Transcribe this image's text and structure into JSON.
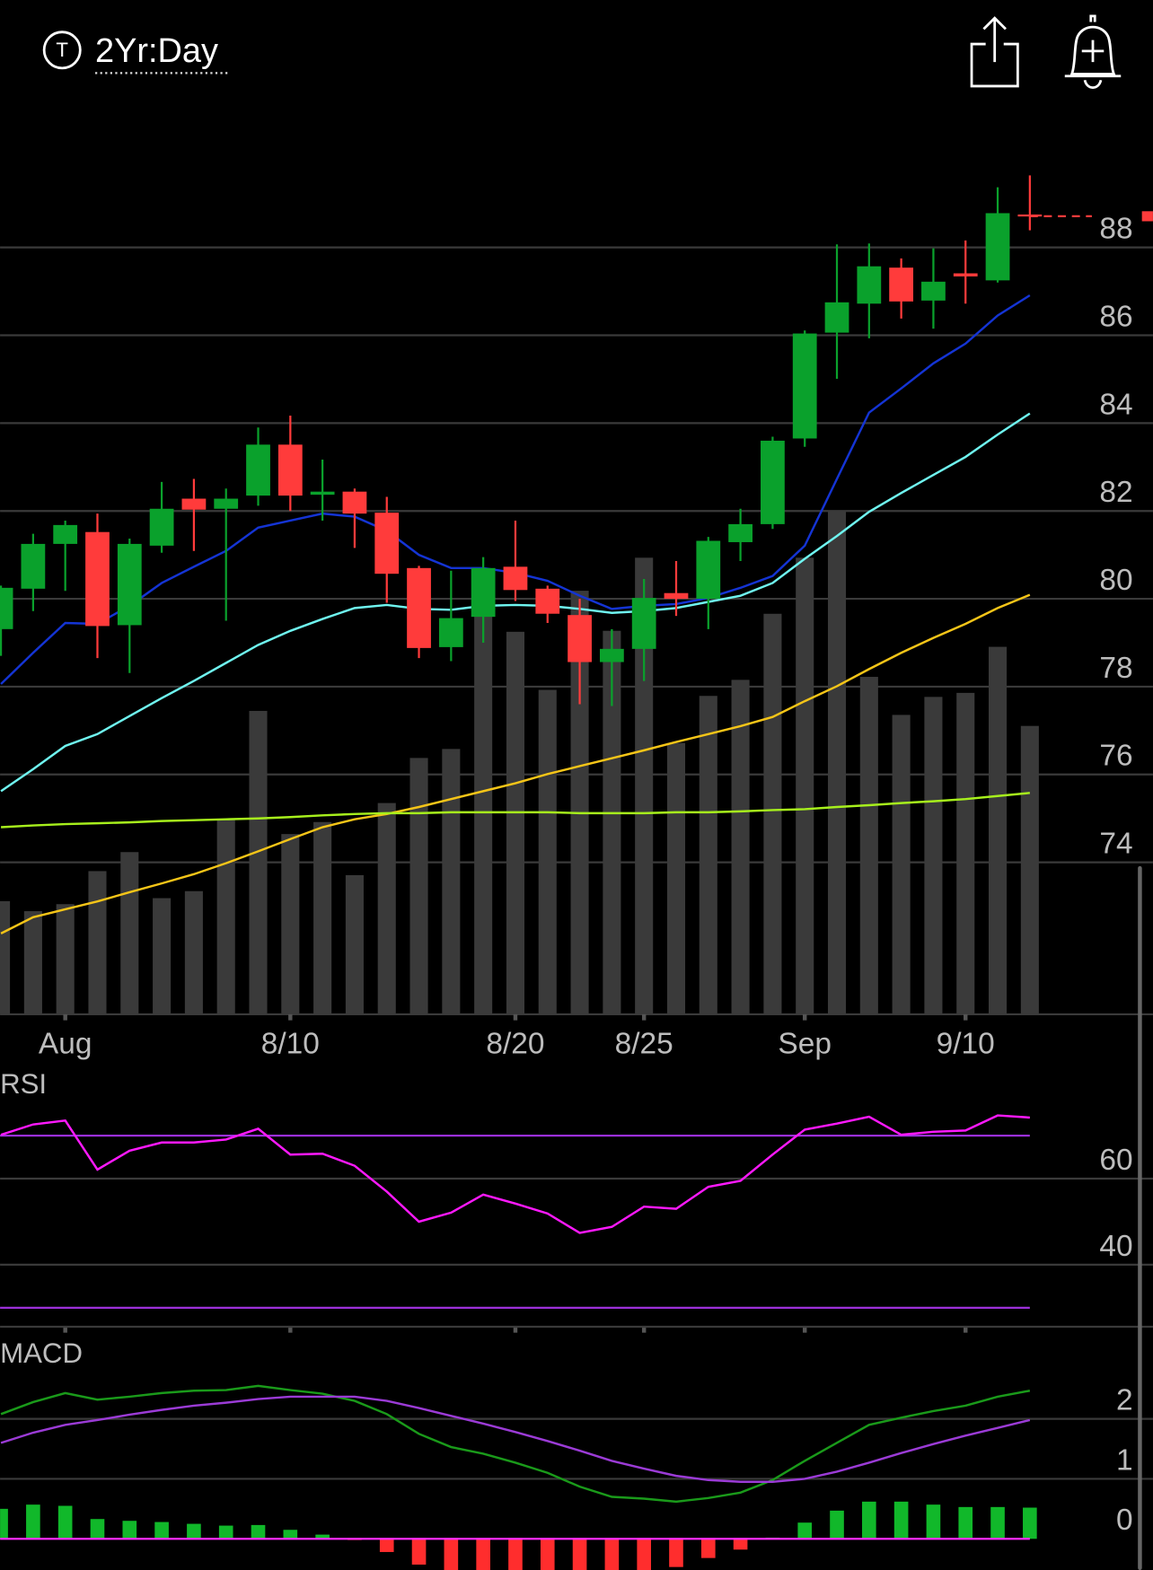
{
  "header": {
    "icon": "T",
    "timeframe": "2Yr:Day"
  },
  "chart_data": [
    {
      "type": "candlestick",
      "categories": [
        null,
        null,
        "Aug",
        null,
        null,
        null,
        null,
        null,
        null,
        "8/10",
        null,
        null,
        null,
        null,
        null,
        null,
        "8/20",
        null,
        null,
        null,
        "8/25",
        null,
        null,
        null,
        null,
        "Sep",
        null,
        null,
        null,
        null,
        "9/10",
        null,
        null
      ],
      "open": [
        79.31,
        80.23,
        81.25,
        81.52,
        79.4,
        81.21,
        82.28,
        82.05,
        82.35,
        83.51,
        82.37,
        82.44,
        81.96,
        80.7,
        78.9,
        79.59,
        80.73,
        80.23,
        79.63,
        78.56,
        78.86,
        80.13,
        80.0,
        81.29,
        81.7,
        83.65,
        86.06,
        86.72,
        87.54,
        86.79,
        87.41,
        87.25,
        88.75
      ],
      "high": [
        80.3,
        81.48,
        81.78,
        81.94,
        81.37,
        82.66,
        82.73,
        82.51,
        83.9,
        84.17,
        83.17,
        82.51,
        82.32,
        80.75,
        80.64,
        80.95,
        81.78,
        80.3,
        80.0,
        79.31,
        80.45,
        80.86,
        81.41,
        82.05,
        83.69,
        86.11,
        88.07,
        88.09,
        87.75,
        87.98,
        88.16,
        89.37,
        89.64
      ],
      "low": [
        78.7,
        79.72,
        80.18,
        78.65,
        78.31,
        81.05,
        81.09,
        79.5,
        82.12,
        82.0,
        81.78,
        81.16,
        79.91,
        78.65,
        78.58,
        79.0,
        79.95,
        79.45,
        77.6,
        77.56,
        78.13,
        79.61,
        79.31,
        80.86,
        81.59,
        83.46,
        85.01,
        85.93,
        86.38,
        86.15,
        86.72,
        87.2,
        88.39
      ],
      "close": [
        80.25,
        81.25,
        81.68,
        79.38,
        81.25,
        82.05,
        82.03,
        82.28,
        83.51,
        82.35,
        82.44,
        81.94,
        80.57,
        78.88,
        79.56,
        80.7,
        80.2,
        79.66,
        78.56,
        78.86,
        80.02,
        80.0,
        81.32,
        81.7,
        83.6,
        86.04,
        86.75,
        87.57,
        86.77,
        87.22,
        87.34,
        88.78,
        88.71
      ],
      "up_color": "#0aa12c",
      "down_color": "#ff3b3b",
      "ylim": [
        70.54,
        90.67
      ],
      "yticks": [
        74,
        76,
        78,
        80,
        82,
        84,
        86,
        88
      ],
      "grid": true,
      "overlays": [
        {
          "color": "#1434d4",
          "values": [
            78.06,
            78.77,
            79.45,
            79.43,
            79.84,
            80.36,
            80.73,
            81.09,
            81.62,
            81.78,
            81.94,
            81.87,
            81.55,
            81.0,
            80.7,
            80.7,
            80.59,
            80.41,
            80.07,
            79.77,
            79.84,
            79.88,
            80.02,
            80.25,
            80.52,
            81.21,
            82.73,
            84.24,
            84.79,
            85.36,
            85.81,
            86.45,
            86.91
          ]
        },
        {
          "color": "#6ff5f0",
          "values": [
            75.62,
            76.12,
            76.65,
            76.92,
            77.33,
            77.74,
            78.13,
            78.54,
            78.95,
            79.27,
            79.54,
            79.79,
            79.86,
            79.77,
            79.75,
            79.84,
            79.86,
            79.84,
            79.77,
            79.68,
            79.72,
            79.79,
            79.93,
            80.07,
            80.36,
            80.91,
            81.43,
            81.98,
            82.41,
            82.82,
            83.23,
            83.74,
            84.22
          ]
        },
        {
          "color": "#f5c518",
          "values": [
            72.38,
            72.75,
            72.93,
            73.11,
            73.32,
            73.52,
            73.73,
            73.98,
            74.25,
            74.53,
            74.8,
            74.98,
            75.1,
            75.26,
            75.44,
            75.62,
            75.8,
            76.01,
            76.19,
            76.37,
            76.55,
            76.74,
            76.92,
            77.1,
            77.31,
            77.67,
            78.01,
            78.4,
            78.77,
            79.11,
            79.43,
            79.79,
            80.09
          ]
        },
        {
          "color": "#a7f01c",
          "values": [
            74.8,
            74.84,
            74.87,
            74.89,
            74.91,
            74.94,
            74.96,
            74.98,
            75.0,
            75.03,
            75.07,
            75.1,
            75.12,
            75.12,
            75.14,
            75.14,
            75.14,
            75.14,
            75.12,
            75.12,
            75.12,
            75.14,
            75.14,
            75.16,
            75.19,
            75.21,
            75.26,
            75.3,
            75.35,
            75.39,
            75.44,
            75.51,
            75.58
          ]
        }
      ],
      "volume": {
        "color": "#3a3a3a",
        "axis": "y2",
        "values": [
          113,
          103,
          110,
          143,
          162,
          116,
          123,
          195,
          303,
          180,
          192,
          139,
          211,
          256,
          265,
          398,
          382,
          324,
          423,
          383,
          456,
          271,
          318,
          334,
          400,
          456,
          503,
          337,
          299,
          317,
          321,
          367,
          288
        ]
      },
      "y2lim": [
        0,
        883
      ],
      "last_price_color": "#ff3b3b"
    },
    {
      "type": "line",
      "title": "RSI",
      "series": [
        {
          "color": "#ff19ff",
          "values": [
            70.2,
            72.6,
            73.5,
            62.1,
            66.5,
            68.4,
            68.4,
            69.1,
            71.6,
            65.6,
            65.8,
            63.0,
            57.0,
            50.0,
            52.1,
            56.3,
            54.2,
            51.9,
            47.4,
            48.8,
            53.5,
            53.0,
            58.1,
            59.5,
            65.6,
            71.4,
            72.8,
            74.4,
            70.2,
            70.9,
            71.2,
            74.7,
            74.2
          ]
        }
      ],
      "ylim": [
        25.6,
        85.4
      ],
      "yticks": [
        40,
        60
      ],
      "grid": true,
      "reference_lines": [
        30,
        70
      ],
      "reference_color": "#9b30d9"
    },
    {
      "type": "macd",
      "title": "MACD",
      "series": [
        {
          "color": "#1a9a1a",
          "values": [
            2.08,
            2.28,
            2.43,
            2.32,
            2.37,
            2.43,
            2.47,
            2.48,
            2.55,
            2.48,
            2.42,
            2.3,
            2.08,
            1.75,
            1.53,
            1.42,
            1.27,
            1.1,
            0.87,
            0.7,
            0.67,
            0.62,
            0.68,
            0.77,
            0.98,
            1.3,
            1.6,
            1.9,
            2.02,
            2.13,
            2.22,
            2.37,
            2.47
          ]
        },
        {
          "color": "#9b3bd6",
          "values": [
            1.6,
            1.77,
            1.9,
            1.98,
            2.07,
            2.15,
            2.22,
            2.27,
            2.33,
            2.37,
            2.37,
            2.37,
            2.3,
            2.18,
            2.05,
            1.92,
            1.78,
            1.63,
            1.47,
            1.3,
            1.17,
            1.05,
            0.98,
            0.95,
            0.95,
            1.0,
            1.12,
            1.27,
            1.43,
            1.58,
            1.72,
            1.85,
            1.98
          ]
        }
      ],
      "histogram": {
        "positive_color": "#11b82a",
        "negative_color": "#ff2d2d",
        "values": [
          0.5,
          0.57,
          0.55,
          0.33,
          0.3,
          0.28,
          0.25,
          0.22,
          0.23,
          0.15,
          0.07,
          -0.02,
          -0.22,
          -0.43,
          -0.55,
          -0.58,
          -0.6,
          -0.6,
          -0.6,
          -0.6,
          -0.55,
          -0.47,
          -0.32,
          -0.18,
          0.02,
          0.27,
          0.47,
          0.62,
          0.62,
          0.57,
          0.53,
          0.53,
          0.52
        ]
      },
      "zero_line_color": "#ff2dff",
      "ylim": [
        -0.52,
        3.37
      ],
      "yticks": [
        0,
        1,
        2
      ],
      "grid": true
    }
  ]
}
